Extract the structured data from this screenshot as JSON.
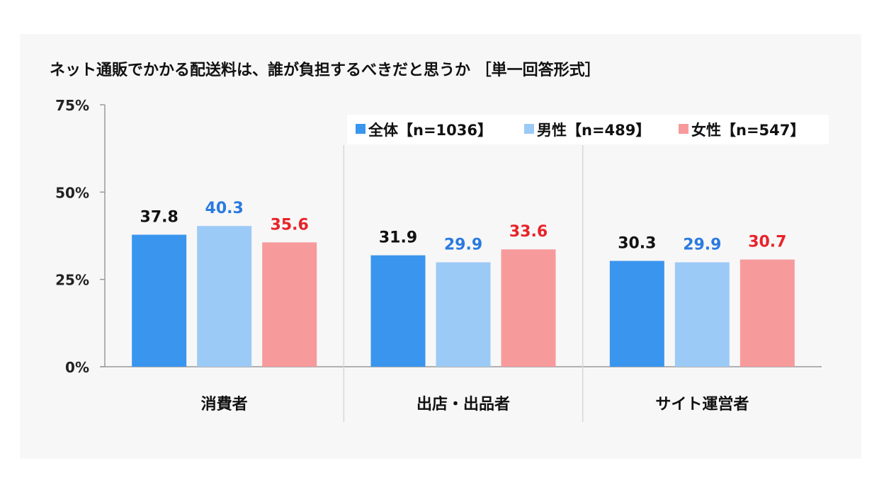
{
  "chart_data": {
    "type": "bar",
    "title": "ネット通販でかかる配送料は、誰が負担するべきだと思うか ［単一回答形式］",
    "categories": [
      "消費者",
      "出店・出品者",
      "サイト運営者"
    ],
    "y_ticks": [
      "0%",
      "25%",
      "50%",
      "75%"
    ],
    "ylim": [
      0,
      75
    ],
    "series": [
      {
        "name": "全体【n=1036】",
        "color": "#3a95ee",
        "label_color": "#111111",
        "values": [
          37.8,
          31.9,
          30.3
        ],
        "labels": [
          "37.8",
          "31.9",
          "30.3"
        ]
      },
      {
        "name": "男性【n=489】",
        "color": "#9ccaf7",
        "label_color": "#2a7ae0",
        "values": [
          40.3,
          29.9,
          29.9
        ],
        "labels": [
          "40.3",
          "29.9",
          "29.9"
        ]
      },
      {
        "name": "女性【n=547】",
        "color": "#f79a9c",
        "label_color": "#e8232a",
        "values": [
          35.6,
          33.6,
          30.7
        ],
        "labels": [
          "35.6",
          "33.6",
          "30.7"
        ]
      }
    ],
    "legend_position": "top-right",
    "grid": false
  }
}
